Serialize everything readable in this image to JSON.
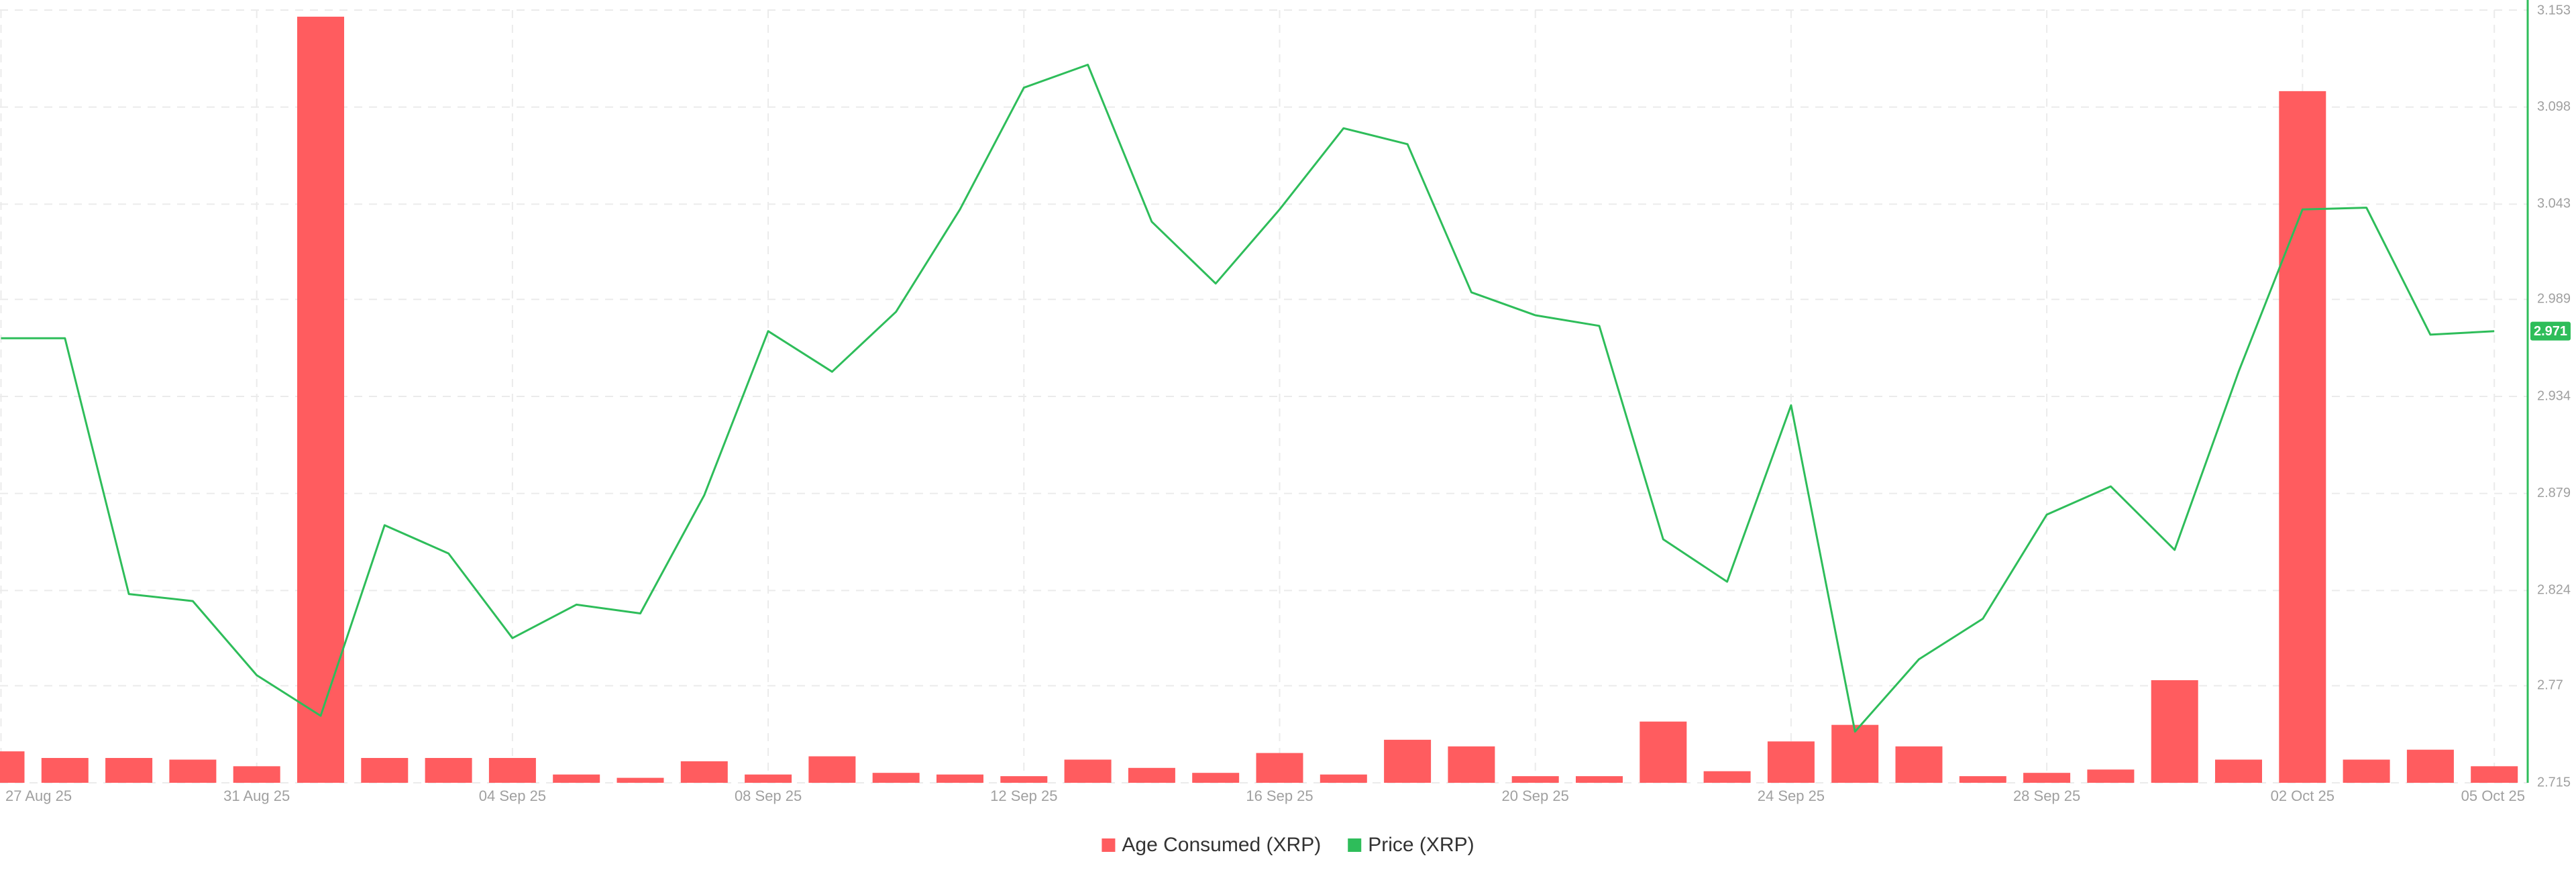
{
  "chart_data": {
    "type": "bar",
    "categories": [
      "27 Aug 25",
      null,
      null,
      null,
      "31 Aug 25",
      null,
      null,
      null,
      "04 Sep 25",
      null,
      null,
      null,
      "08 Sep 25",
      null,
      null,
      null,
      "12 Sep 25",
      null,
      null,
      null,
      "16 Sep 25",
      null,
      null,
      null,
      "20 Sep 25",
      null,
      null,
      null,
      "24 Sep 25",
      null,
      null,
      null,
      "28 Sep 25",
      null,
      null,
      null,
      "02 Oct 25",
      null,
      null,
      "05 Oct 25"
    ],
    "series": [
      {
        "name": "Age Consumed (XRP)",
        "type": "bar",
        "color": "#ff5c5f",
        "values": [
          19,
          15,
          15,
          14,
          10,
          463,
          15,
          15,
          15,
          5,
          3,
          13,
          5,
          16,
          6,
          5,
          4,
          14,
          9,
          6,
          18,
          5,
          26,
          22,
          4,
          4,
          37,
          7,
          25,
          35,
          22,
          4,
          6,
          8,
          62,
          14,
          418,
          14,
          20,
          10
        ]
      },
      {
        "name": "Price (XRP)",
        "type": "line",
        "axis": "y2",
        "color": "#2ebd5a",
        "values": [
          2.967,
          2.967,
          2.822,
          2.818,
          2.776,
          2.753,
          2.861,
          2.845,
          2.797,
          2.816,
          2.811,
          2.878,
          2.971,
          2.948,
          2.982,
          3.04,
          3.109,
          3.122,
          3.033,
          2.998,
          3.04,
          3.086,
          3.077,
          2.993,
          2.98,
          2.974,
          2.853,
          2.829,
          2.929,
          2.744,
          2.785,
          2.808,
          2.867,
          2.883,
          2.847,
          2.948,
          3.04,
          3.041,
          2.969,
          2.971
        ]
      }
    ],
    "ylim": [
      0,
      467
    ],
    "y2lim": [
      2.715,
      3.153
    ],
    "y2ticks": [
      2.715,
      2.77,
      2.824,
      2.879,
      2.934,
      2.989,
      3.043,
      3.098,
      3.153
    ],
    "grid": true,
    "legend": "bottom"
  }
}
